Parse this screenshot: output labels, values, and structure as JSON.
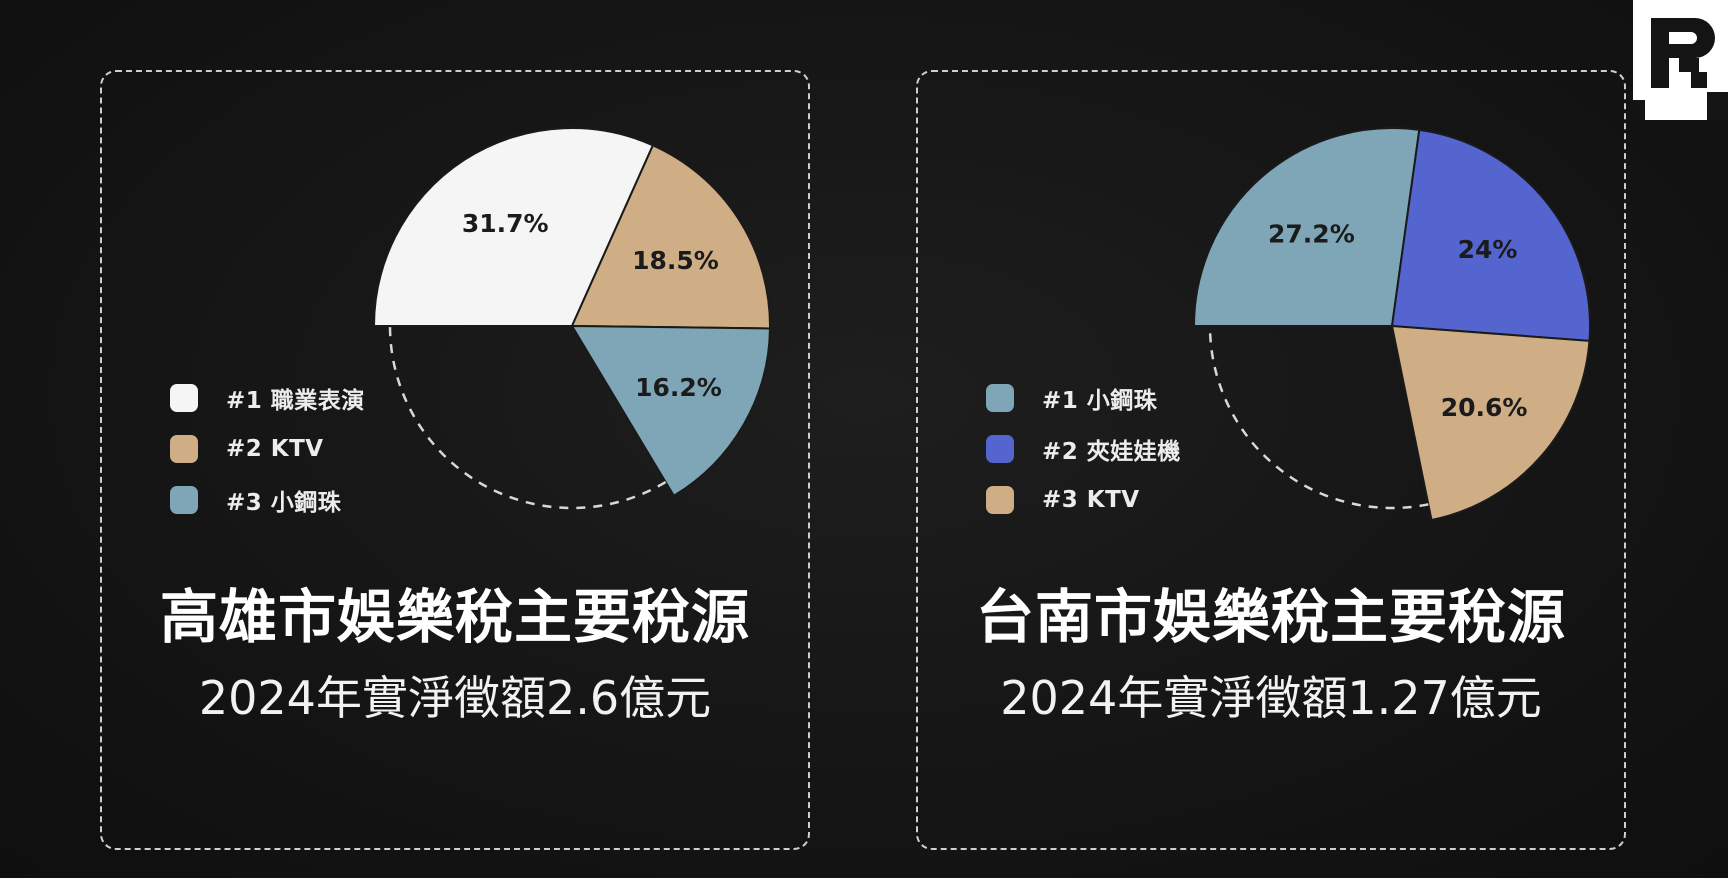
{
  "colors": {
    "background": "#141414",
    "white": "#f5f5f5",
    "tan": "#cfae86",
    "steel_blue": "#7ea6b6",
    "royal_blue": "#5565cf",
    "label_dark": "#1b1b1b",
    "border": "#cfcfcf"
  },
  "logo": {
    "icon": "publisher-logo-icon"
  },
  "chart_data": [
    {
      "type": "pie",
      "title": "高雄市娛樂稅主要稅源",
      "subtitle": "2024年實淨徵額2.6億元",
      "legend_position": "left",
      "slices": [
        {
          "rank_label": "#1 職業表演",
          "value": 31.7,
          "label": "31.7%",
          "color": "#f5f5f5"
        },
        {
          "rank_label": "#2 KTV",
          "value": 18.5,
          "label": "18.5%",
          "color": "#cfae86"
        },
        {
          "rank_label": "#3 小鋼珠",
          "value": 16.2,
          "label": "16.2%",
          "color": "#7ea6b6"
        }
      ]
    },
    {
      "type": "pie",
      "title": "台南市娛樂稅主要稅源",
      "subtitle": "2024年實淨徵額1.27億元",
      "legend_position": "left",
      "slices": [
        {
          "rank_label": "#1 小鋼珠",
          "value": 27.2,
          "label": "27.2%",
          "color": "#7ea6b6"
        },
        {
          "rank_label": "#2 夾娃娃機",
          "value": 24,
          "label": "24%",
          "color": "#5565cf"
        },
        {
          "rank_label": "#3 KTV",
          "value": 20.6,
          "label": "20.6%",
          "color": "#cfae86"
        }
      ]
    }
  ]
}
